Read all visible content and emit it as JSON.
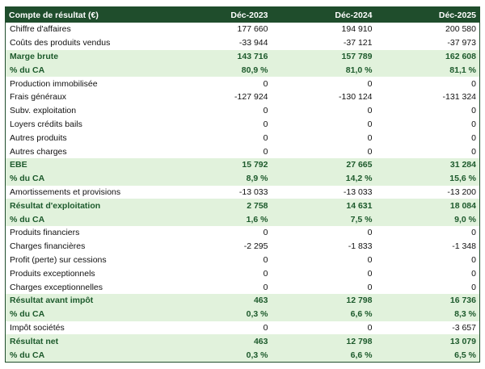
{
  "table": {
    "header": [
      "Compte de résultat (€)",
      "Déc-2023",
      "Déc-2024",
      "Déc-2025"
    ],
    "rows": [
      [
        "Chiffre d'affaires",
        "177 660",
        "194 910",
        "200 580"
      ],
      [
        "Coûts des produits vendus",
        "-33 944",
        "-37 121",
        "-37 973"
      ],
      [
        "Marge brute",
        "143 716",
        "157 789",
        "162 608"
      ],
      [
        "% du CA",
        "80,9 %",
        "81,0 %",
        "81,1 %"
      ],
      [
        "Production immobilisée",
        "0",
        "0",
        "0"
      ],
      [
        "Frais généraux",
        "-127 924",
        "-130 124",
        "-131 324"
      ],
      [
        "Subv. exploitation",
        "0",
        "0",
        "0"
      ],
      [
        "Loyers crédits bails",
        "0",
        "0",
        "0"
      ],
      [
        "Autres produits",
        "0",
        "0",
        "0"
      ],
      [
        "Autres charges",
        "0",
        "0",
        "0"
      ],
      [
        "EBE",
        "15 792",
        "27 665",
        "31 284"
      ],
      [
        "% du CA",
        "8,9 %",
        "14,2 %",
        "15,6 %"
      ],
      [
        "Amortissements et provisions",
        "-13 033",
        "-13 033",
        "-13 200"
      ],
      [
        "Résultat d'exploitation",
        "2 758",
        "14 631",
        "18 084"
      ],
      [
        "% du CA",
        "1,6 %",
        "7,5 %",
        "9,0 %"
      ],
      [
        "Produits financiers",
        "0",
        "0",
        "0"
      ],
      [
        "Charges financières",
        "-2 295",
        "-1 833",
        "-1 348"
      ],
      [
        "Profit (perte) sur cessions",
        "0",
        "0",
        "0"
      ],
      [
        "Produits exceptionnels",
        "0",
        "0",
        "0"
      ],
      [
        "Charges exceptionnelles",
        "0",
        "0",
        "0"
      ],
      [
        "Résultat avant impôt",
        "463",
        "12 798",
        "16 736"
      ],
      [
        "% du CA",
        "0,3 %",
        "6,6 %",
        "8,3 %"
      ],
      [
        "Impôt sociétés",
        "0",
        "0",
        "-3 657"
      ],
      [
        "Résultat net",
        "463",
        "12 798",
        "13 079"
      ],
      [
        "% du CA",
        "0,3 %",
        "6,6 %",
        "6,5 %"
      ]
    ]
  }
}
